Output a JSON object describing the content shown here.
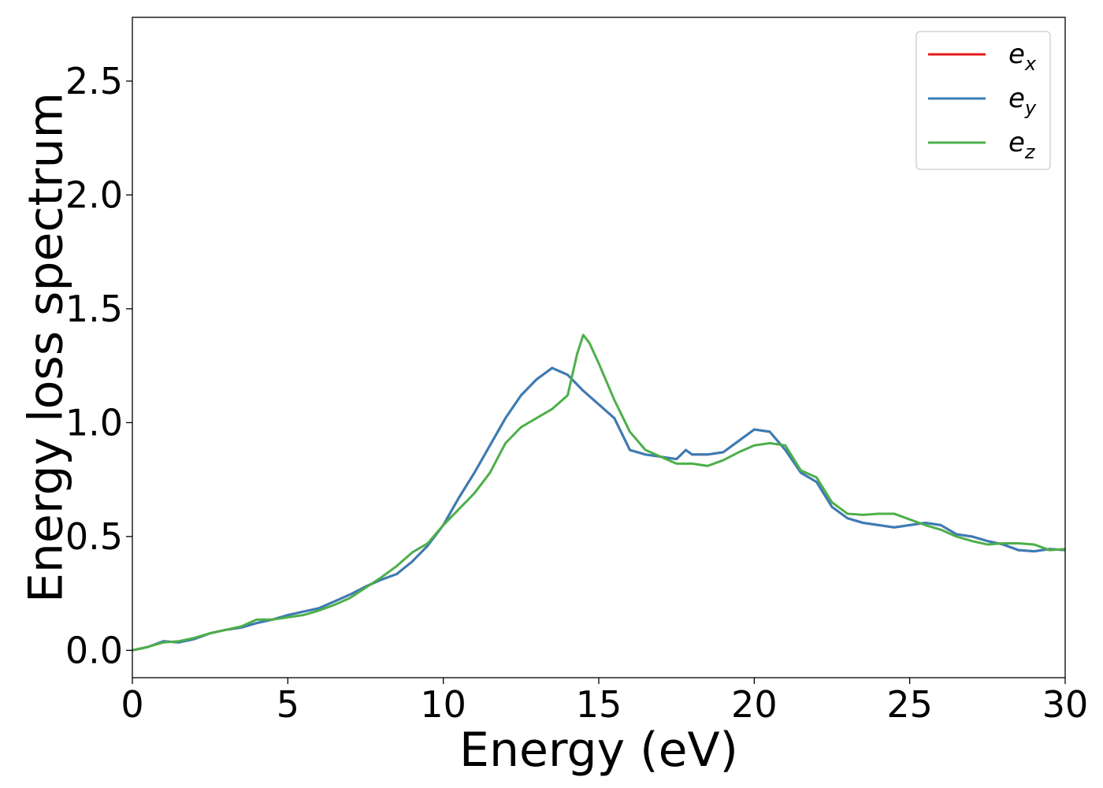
{
  "chart_data": {
    "type": "line",
    "xlabel": "Energy (eV)",
    "ylabel": "Energy loss spectrum",
    "xlim": [
      0,
      30
    ],
    "ylim": [
      -0.12,
      2.78
    ],
    "xticks": [
      "0",
      "5",
      "10",
      "15",
      "20",
      "25",
      "30"
    ],
    "yticks": [
      "0.0",
      "0.5",
      "1.0",
      "1.5",
      "2.0",
      "2.5"
    ],
    "grid": false,
    "legend_position": "top-right",
    "series": [
      {
        "name": "e_x",
        "legend_base": "e",
        "legend_sub": "x",
        "color": "#e41a1c",
        "x": [
          0,
          0.5,
          1.0,
          1.5,
          2.0,
          2.5,
          3.0,
          3.5,
          4.0,
          4.5,
          5.0,
          5.5,
          6.0,
          6.5,
          7.0,
          7.5,
          8.0,
          8.5,
          9.0,
          9.5,
          10.0,
          10.5,
          11.0,
          11.5,
          12.0,
          12.5,
          13.0,
          13.5,
          14.0,
          14.5,
          15.0,
          15.5,
          16.0,
          16.5,
          17.0,
          17.5,
          17.8,
          18.0,
          18.5,
          19.0,
          19.5,
          20.0,
          20.5,
          21.0,
          21.5,
          22.0,
          22.5,
          23.0,
          23.5,
          24.0,
          24.5,
          25.0,
          25.5,
          26.0,
          26.5,
          27.0,
          27.5,
          28.0,
          28.5,
          29.0,
          29.5,
          30.0
        ],
        "y": [
          0.0,
          0.015,
          0.04,
          0.035,
          0.05,
          0.075,
          0.09,
          0.1,
          0.12,
          0.135,
          0.155,
          0.17,
          0.185,
          0.215,
          0.245,
          0.28,
          0.31,
          0.335,
          0.39,
          0.46,
          0.55,
          0.67,
          0.78,
          0.9,
          1.02,
          1.12,
          1.19,
          1.24,
          1.21,
          1.14,
          1.08,
          1.02,
          0.88,
          0.86,
          0.85,
          0.84,
          0.88,
          0.86,
          0.86,
          0.87,
          0.92,
          0.97,
          0.96,
          0.88,
          0.78,
          0.74,
          0.63,
          0.58,
          0.56,
          0.55,
          0.54,
          0.55,
          0.56,
          0.55,
          0.51,
          0.5,
          0.48,
          0.465,
          0.44,
          0.435,
          0.445,
          0.44
        ]
      },
      {
        "name": "e_y",
        "legend_base": "e",
        "legend_sub": "y",
        "color": "#377eb8",
        "x": [
          0,
          0.5,
          1.0,
          1.5,
          2.0,
          2.5,
          3.0,
          3.5,
          4.0,
          4.5,
          5.0,
          5.5,
          6.0,
          6.5,
          7.0,
          7.5,
          8.0,
          8.5,
          9.0,
          9.5,
          10.0,
          10.5,
          11.0,
          11.5,
          12.0,
          12.5,
          13.0,
          13.5,
          14.0,
          14.5,
          15.0,
          15.5,
          16.0,
          16.5,
          17.0,
          17.5,
          17.8,
          18.0,
          18.5,
          19.0,
          19.5,
          20.0,
          20.5,
          21.0,
          21.5,
          22.0,
          22.5,
          23.0,
          23.5,
          24.0,
          24.5,
          25.0,
          25.5,
          26.0,
          26.5,
          27.0,
          27.5,
          28.0,
          28.5,
          29.0,
          29.5,
          30.0
        ],
        "y": [
          0.0,
          0.015,
          0.04,
          0.035,
          0.05,
          0.075,
          0.09,
          0.1,
          0.12,
          0.135,
          0.155,
          0.17,
          0.185,
          0.215,
          0.245,
          0.28,
          0.31,
          0.335,
          0.39,
          0.46,
          0.55,
          0.67,
          0.78,
          0.9,
          1.02,
          1.12,
          1.19,
          1.24,
          1.21,
          1.14,
          1.08,
          1.02,
          0.88,
          0.86,
          0.85,
          0.84,
          0.88,
          0.86,
          0.86,
          0.87,
          0.92,
          0.97,
          0.96,
          0.88,
          0.78,
          0.74,
          0.63,
          0.58,
          0.56,
          0.55,
          0.54,
          0.55,
          0.56,
          0.55,
          0.51,
          0.5,
          0.48,
          0.465,
          0.44,
          0.435,
          0.445,
          0.44
        ]
      },
      {
        "name": "e_z",
        "legend_base": "e",
        "legend_sub": "z",
        "color": "#4daf4a",
        "x": [
          0,
          0.5,
          1.0,
          1.5,
          2.0,
          2.5,
          3.0,
          3.5,
          4.0,
          4.5,
          5.0,
          5.5,
          6.0,
          6.5,
          7.0,
          7.5,
          8.0,
          8.5,
          9.0,
          9.5,
          10.0,
          10.5,
          11.0,
          11.5,
          12.0,
          12.5,
          13.0,
          13.5,
          14.0,
          14.3,
          14.5,
          14.7,
          15.0,
          15.5,
          16.0,
          16.5,
          17.0,
          17.5,
          18.0,
          18.5,
          19.0,
          19.5,
          20.0,
          20.5,
          21.0,
          21.5,
          22.0,
          22.5,
          23.0,
          23.5,
          24.0,
          24.5,
          25.0,
          25.5,
          26.0,
          26.5,
          27.0,
          27.5,
          28.0,
          28.5,
          29.0,
          29.5,
          30.0
        ],
        "y": [
          0.0,
          0.015,
          0.035,
          0.04,
          0.055,
          0.075,
          0.09,
          0.105,
          0.135,
          0.135,
          0.145,
          0.155,
          0.175,
          0.2,
          0.23,
          0.275,
          0.32,
          0.37,
          0.43,
          0.47,
          0.55,
          0.62,
          0.69,
          0.78,
          0.91,
          0.98,
          1.02,
          1.06,
          1.12,
          1.3,
          1.385,
          1.35,
          1.26,
          1.1,
          0.96,
          0.88,
          0.85,
          0.82,
          0.82,
          0.81,
          0.835,
          0.87,
          0.9,
          0.91,
          0.9,
          0.79,
          0.76,
          0.65,
          0.6,
          0.595,
          0.6,
          0.6,
          0.575,
          0.55,
          0.53,
          0.5,
          0.48,
          0.465,
          0.47,
          0.47,
          0.465,
          0.44,
          0.445
        ]
      }
    ]
  }
}
